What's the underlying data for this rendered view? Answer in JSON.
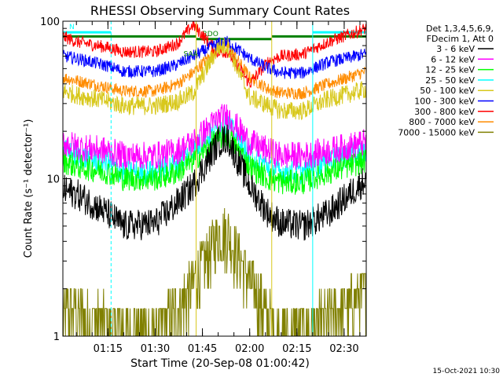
{
  "chart_data": {
    "type": "line",
    "title": "RHESSI Observing Summary Count Rates",
    "xlabel": "Start Time (20-Sep-08 01:00:42)",
    "ylabel": "Count Rate (s⁻¹ detector⁻¹)",
    "y_scale": "log",
    "ylim": [
      1,
      100
    ],
    "xlim": [
      "01:00:42",
      "02:37:00"
    ],
    "y_ticks": [
      {
        "value": 1,
        "label": "1"
      },
      {
        "value": 10,
        "label": "10"
      },
      {
        "value": 100,
        "label": "100"
      }
    ],
    "x_ticks": [
      {
        "time": "01:15",
        "label": "01:15"
      },
      {
        "time": "01:30",
        "label": "01:30"
      },
      {
        "time": "01:45",
        "label": "01:45"
      },
      {
        "time": "02:00",
        "label": "02:00"
      },
      {
        "time": "02:15",
        "label": "02:15"
      },
      {
        "time": "02:30",
        "label": "02:30"
      }
    ],
    "legend": {
      "position": "right",
      "header": [
        "Det 1,3,4,5,6,9,",
        "FDecim 1, Att 0"
      ],
      "entries": [
        {
          "label": "3 - 6 keV",
          "color": "#000000"
        },
        {
          "label": "6 - 12 keV",
          "color": "#ff00ff"
        },
        {
          "label": "12 - 25 keV",
          "color": "#00ff00"
        },
        {
          "label": "25 - 50 keV",
          "color": "#00ffff"
        },
        {
          "label": "50 - 100 keV",
          "color": "#d8c81c"
        },
        {
          "label": "100 - 300 keV",
          "color": "#0000ff"
        },
        {
          "label": "300 - 800 keV",
          "color": "#ff0000"
        },
        {
          "label": "800 - 7000 keV",
          "color": "#ff8c00"
        },
        {
          "label": "7000 - 15000 keV",
          "color": "#808000"
        }
      ]
    },
    "series_keypoints": {
      "x": [
        "01:00:42",
        "01:05",
        "01:15",
        "01:20",
        "01:30",
        "01:37",
        "01:42",
        "01:50",
        "01:53",
        "02:00",
        "02:06",
        "02:10",
        "02:17",
        "02:25",
        "02:37"
      ],
      "series": [
        {
          "band": "3 - 6 keV",
          "values": [
            8.5,
            8,
            6,
            5,
            5.2,
            7,
            9,
            17,
            18,
            9,
            6,
            5.2,
            5,
            6,
            10
          ]
        },
        {
          "band": "6 - 12 keV",
          "values": [
            17,
            16,
            15,
            14,
            14,
            15,
            17,
            24,
            25,
            17,
            15,
            14,
            14,
            15,
            17
          ]
        },
        {
          "band": "12 - 25 keV",
          "values": [
            13,
            12,
            11,
            10,
            10,
            11,
            13,
            18,
            19,
            12,
            10,
            9.5,
            9.5,
            11,
            13
          ]
        },
        {
          "band": "25 - 50 keV",
          "values": [
            15,
            14,
            12.5,
            11,
            11,
            12.5,
            15,
            21,
            22,
            14,
            12,
            11,
            11,
            13,
            15
          ]
        },
        {
          "band": "50 - 100 keV",
          "values": [
            36,
            34,
            31,
            29,
            29,
            31,
            35,
            68,
            70,
            33,
            29,
            27,
            27,
            32,
            37
          ]
        },
        {
          "band": "100 - 300 keV",
          "values": [
            60,
            58,
            52,
            48,
            48,
            53,
            60,
            72,
            74,
            58,
            50,
            47,
            47,
            55,
            62
          ]
        },
        {
          "band": "300 - 800 keV",
          "values": [
            80,
            74,
            68,
            64,
            64,
            72,
            95,
            63,
            64,
            40,
            56,
            60,
            62,
            74,
            90
          ]
        },
        {
          "band": "800 - 7000 keV",
          "values": [
            44,
            42,
            38,
            36,
            36,
            40,
            47,
            68,
            70,
            44,
            37,
            35,
            35,
            40,
            48
          ]
        },
        {
          "band": "7000 - 15000 keV",
          "values": [
            1.5,
            1.4,
            1.2,
            1.1,
            1.1,
            1.5,
            2.2,
            4.5,
            4.6,
            2.3,
            1.3,
            1.1,
            1.1,
            1.3,
            2
          ]
        }
      ]
    },
    "intervals": [
      {
        "label": "N",
        "color": "#00ffff",
        "start": "01:00:42",
        "end": "01:16",
        "value": 85
      },
      {
        "label": "",
        "color": "#00ffff",
        "start": "02:20",
        "end": "02:37",
        "value": 85
      },
      {
        "label": "RDO",
        "color": "#008000",
        "start": "01:43",
        "end": "02:07",
        "value": 77
      },
      {
        "label": "",
        "color": "#008000",
        "start": "01:00:42",
        "end": "01:43",
        "value": 80
      },
      {
        "label": "",
        "color": "#008000",
        "start": "02:07",
        "end": "02:37",
        "value": 80
      }
    ],
    "annotations": [
      {
        "text": "SAA",
        "time": "01:39",
        "value": 60
      }
    ],
    "vertical_markers": [
      {
        "time": "01:00:42",
        "color": "#00ffff",
        "style": "solid"
      },
      {
        "time": "01:16",
        "color": "#00ffff",
        "style": "dashed"
      },
      {
        "time": "01:43",
        "color": "#d8c81c",
        "style": "solid"
      },
      {
        "time": "02:07",
        "color": "#d8c81c",
        "style": "solid"
      },
      {
        "time": "02:20",
        "color": "#00ffff",
        "style": "solid"
      },
      {
        "time": "02:37",
        "color": "#00ffff",
        "style": "dashed"
      }
    ],
    "footer": "15-Oct-2021 10:30",
    "grid": false
  }
}
